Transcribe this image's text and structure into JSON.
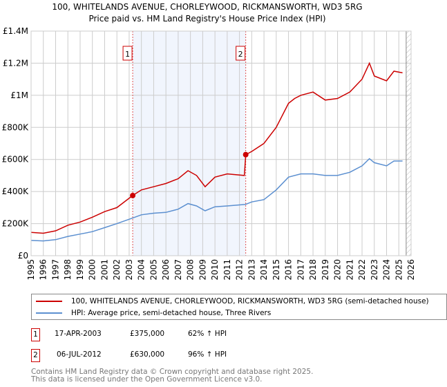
{
  "chart_data": {
    "type": "line",
    "title": "100, WHITELANDS AVENUE, CHORLEYWOOD, RICKMANSWORTH, WD3 5RG",
    "subtitle": "Price paid vs. HM Land Registry's House Price Index (HPI)",
    "xlim": [
      1995,
      2026
    ],
    "ylim": [
      0,
      1400000
    ],
    "x_ticks": [
      "1995",
      "1996",
      "1997",
      "1998",
      "1999",
      "2000",
      "2001",
      "2002",
      "2003",
      "2004",
      "2005",
      "2006",
      "2007",
      "2008",
      "2009",
      "2010",
      "2011",
      "2012",
      "2013",
      "2014",
      "2015",
      "2016",
      "2017",
      "2018",
      "2019",
      "2020",
      "2021",
      "2022",
      "2023",
      "2024",
      "2025",
      "2026"
    ],
    "y_ticks": [
      {
        "v": 0,
        "l": "£0"
      },
      {
        "v": 200000,
        "l": "£200K"
      },
      {
        "v": 400000,
        "l": "£400K"
      },
      {
        "v": 600000,
        "l": "£600K"
      },
      {
        "v": 800000,
        "l": "£800K"
      },
      {
        "v": 1000000,
        "l": "£1M"
      },
      {
        "v": 1200000,
        "l": "£1.2M"
      },
      {
        "v": 1400000,
        "l": "£1.4M"
      }
    ],
    "series": [
      {
        "name": "100, WHITELANDS AVENUE, CHORLEYWOOD, RICKMANSWORTH, WD3 5RG (semi-detached house)",
        "color": "#cc0000",
        "x": [
          1995,
          1996,
          1997,
          1998,
          1999,
          2000,
          2001,
          2002,
          2003.29,
          2004,
          2005,
          2006,
          2007,
          2007.8,
          2008.5,
          2009.2,
          2010,
          2011,
          2012.4,
          2012.51,
          2013,
          2014,
          2015,
          2016,
          2016.5,
          2017,
          2018,
          2019,
          2020,
          2021,
          2022,
          2022.6,
          2023,
          2024,
          2024.6,
          2025.3
        ],
        "y": [
          145000,
          140000,
          155000,
          190000,
          210000,
          240000,
          275000,
          300000,
          375000,
          410000,
          430000,
          450000,
          480000,
          530000,
          500000,
          430000,
          490000,
          510000,
          500000,
          630000,
          650000,
          700000,
          800000,
          950000,
          980000,
          1000000,
          1020000,
          970000,
          980000,
          1020000,
          1100000,
          1200000,
          1120000,
          1090000,
          1150000,
          1140000
        ]
      },
      {
        "name": "HPI: Average price, semi-detached house, Three Rivers",
        "color": "#5b8fd0",
        "x": [
          1995,
          1996,
          1997,
          1998,
          1999,
          2000,
          2001,
          2002,
          2003.29,
          2004,
          2005,
          2006,
          2007,
          2007.8,
          2008.5,
          2009.2,
          2010,
          2011,
          2012.5,
          2013,
          2014,
          2015,
          2016,
          2017,
          2018,
          2019,
          2020,
          2021,
          2022,
          2022.6,
          2023,
          2024,
          2024.6,
          2025.3
        ],
        "y": [
          95000,
          92000,
          100000,
          120000,
          135000,
          150000,
          175000,
          200000,
          235000,
          255000,
          265000,
          270000,
          290000,
          325000,
          310000,
          280000,
          305000,
          310000,
          320000,
          335000,
          350000,
          410000,
          490000,
          510000,
          510000,
          500000,
          500000,
          520000,
          560000,
          605000,
          580000,
          560000,
          590000,
          590000
        ]
      }
    ],
    "annotations": [
      {
        "label": "1",
        "x": 2003.29,
        "y": 375000
      },
      {
        "label": "2",
        "x": 2012.51,
        "y": 630000
      }
    ],
    "shaded_range": [
      2003.29,
      2012.51
    ],
    "hatched_from": 2025.6
  },
  "legend": {
    "red": "100, WHITELANDS AVENUE, CHORLEYWOOD, RICKMANSWORTH, WD3 5RG (semi-detached house)",
    "blue": "HPI: Average price, semi-detached house, Three Rivers"
  },
  "sales": [
    {
      "n": "1",
      "date": "17-APR-2003",
      "price": "£375,000",
      "hpi": "62% ↑ HPI"
    },
    {
      "n": "2",
      "date": "06-JUL-2012",
      "price": "£630,000",
      "hpi": "96% ↑ HPI"
    }
  ],
  "footer": {
    "line1": "Contains HM Land Registry data © Crown copyright and database right 2025.",
    "line2": "This data is licensed under the Open Government Licence v3.0."
  }
}
